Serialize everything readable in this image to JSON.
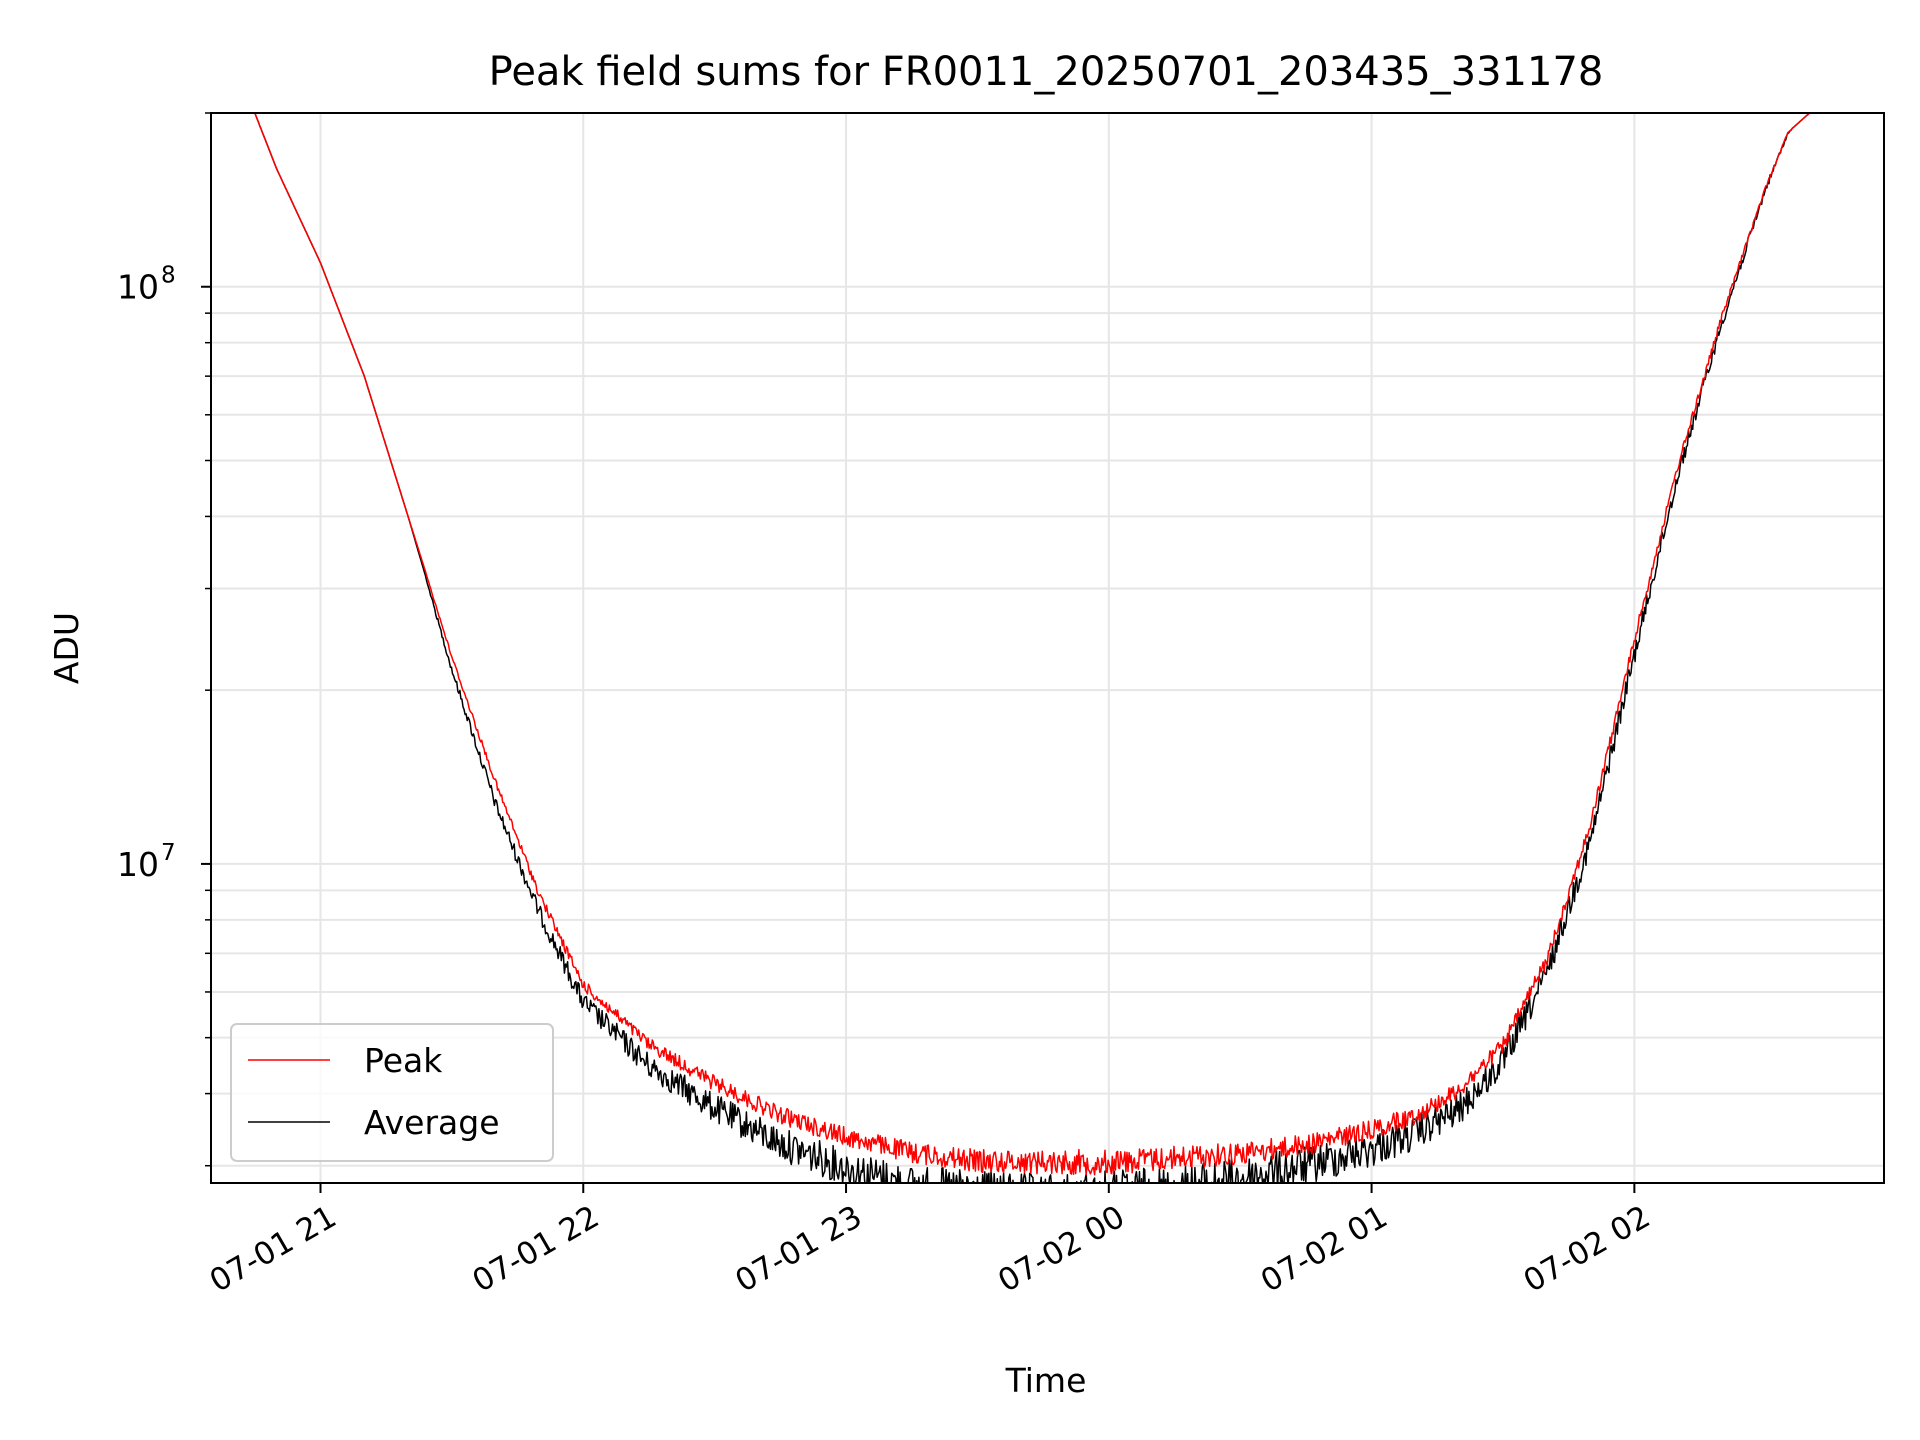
{
  "chart_data": {
    "type": "line",
    "title": "Peak field sums for FR0011_20250701_203435_331178",
    "xlabel": "Time",
    "ylabel": "ADU",
    "yscale": "log",
    "ylim": [
      2800000,
      200000000
    ],
    "xlim": [
      "2025-07-01 20:35",
      "2025-07-02 02:57"
    ],
    "grid": true,
    "legend": "lower-left",
    "x_ticks": [
      "2025-07-01 21:00",
      "2025-07-01 22:00",
      "2025-07-01 23:00",
      "2025-07-02 00:00",
      "2025-07-02 01:00",
      "2025-07-02 02:00"
    ],
    "x_tick_labels": [
      "07-01 21",
      "07-01 22",
      "07-01 23",
      "07-02 00",
      "07-02 01",
      "07-02 02"
    ],
    "y_tick_labels": [
      {
        "value": 10000000,
        "base": "10",
        "exp": "7"
      },
      {
        "value": 100000000,
        "base": "10",
        "exp": "8"
      }
    ],
    "series": [
      {
        "name": "Peak",
        "color": "#ff0000",
        "x": [
          "2025-07-01 20:35",
          "2025-07-01 20:45",
          "2025-07-01 20:50",
          "2025-07-01 21:00",
          "2025-07-01 21:10",
          "2025-07-01 21:20",
          "2025-07-01 21:30",
          "2025-07-01 21:40",
          "2025-07-01 21:50",
          "2025-07-01 22:00",
          "2025-07-01 22:15",
          "2025-07-01 22:30",
          "2025-07-01 22:45",
          "2025-07-01 23:00",
          "2025-07-01 23:15",
          "2025-07-01 23:30",
          "2025-07-01 23:45",
          "2025-07-02 00:00",
          "2025-07-02 00:15",
          "2025-07-02 00:30",
          "2025-07-02 00:45",
          "2025-07-02 01:00",
          "2025-07-02 01:10",
          "2025-07-02 01:20",
          "2025-07-02 01:30",
          "2025-07-02 01:40",
          "2025-07-02 01:50",
          "2025-07-02 02:00",
          "2025-07-02 02:10",
          "2025-07-02 02:20",
          "2025-07-02 02:30",
          "2025-07-02 02:35",
          "2025-07-02 02:40",
          "2025-07-02 02:57"
        ],
        "values": [
          200000000,
          200000000,
          160000000,
          110000000,
          70000000,
          40000000,
          23000000,
          14000000,
          9000000,
          6300000,
          5000000,
          4300000,
          3800000,
          3500000,
          3300000,
          3200000,
          3200000,
          3200000,
          3250000,
          3300000,
          3400000,
          3600000,
          3800000,
          4200000,
          5000000,
          7000000,
          12000000,
          25000000,
          50000000,
          90000000,
          150000000,
          185000000,
          200000000,
          200000000
        ]
      },
      {
        "name": "Average",
        "color": "#000000",
        "x": [
          "2025-07-01 20:35",
          "2025-07-01 20:45",
          "2025-07-01 20:50",
          "2025-07-01 21:00",
          "2025-07-01 21:10",
          "2025-07-01 21:20",
          "2025-07-01 21:30",
          "2025-07-01 21:40",
          "2025-07-01 21:50",
          "2025-07-01 22:00",
          "2025-07-01 22:15",
          "2025-07-01 22:30",
          "2025-07-01 22:45",
          "2025-07-01 23:00",
          "2025-07-01 23:15",
          "2025-07-01 23:30",
          "2025-07-01 23:45",
          "2025-07-02 00:00",
          "2025-07-02 00:15",
          "2025-07-02 00:30",
          "2025-07-02 00:45",
          "2025-07-02 01:00",
          "2025-07-02 01:10",
          "2025-07-02 01:20",
          "2025-07-02 01:30",
          "2025-07-02 01:40",
          "2025-07-02 01:50",
          "2025-07-02 02:00",
          "2025-07-02 02:10",
          "2025-07-02 02:20",
          "2025-07-02 02:30",
          "2025-07-02 02:35",
          "2025-07-02 02:40",
          "2025-07-02 02:57"
        ],
        "values": [
          200000000,
          200000000,
          160000000,
          110000000,
          70000000,
          40000000,
          22000000,
          13000000,
          8500000,
          6000000,
          4700000,
          4000000,
          3500000,
          3200000,
          3000000,
          2950000,
          2900000,
          2950000,
          3000000,
          3100000,
          3250000,
          3450000,
          3650000,
          4000000,
          4800000,
          6800000,
          11500000,
          24000000,
          49000000,
          89000000,
          150000000,
          185000000,
          200000000,
          200000000
        ]
      }
    ]
  }
}
